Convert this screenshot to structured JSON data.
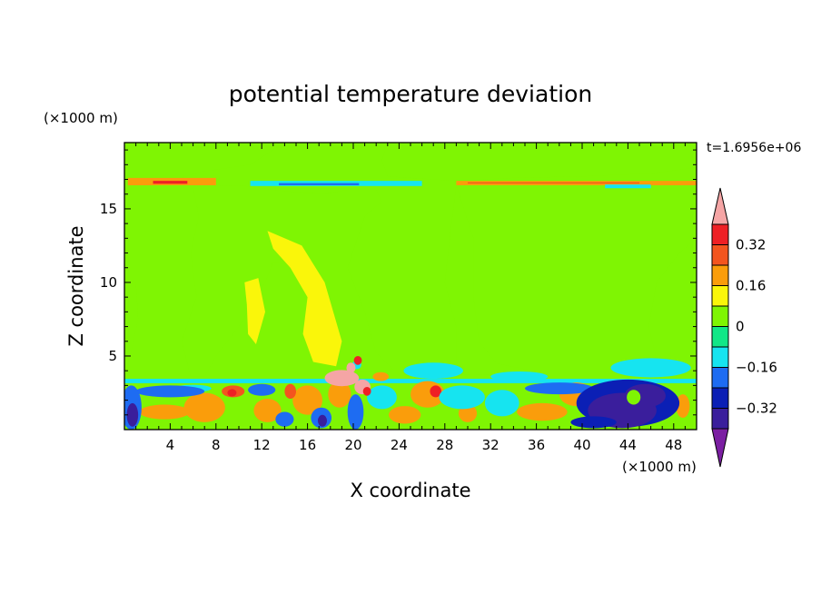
{
  "chart_data": {
    "type": "heatmap",
    "title": "potential temperature deviation",
    "xlabel": "X coordinate",
    "ylabel": "Z coordinate",
    "x_unit": "(×1000 m)",
    "y_unit": "(×1000 m)",
    "time_label": "t=1.6956e+06",
    "xlim": [
      0,
      50
    ],
    "ylim": [
      0,
      19.5
    ],
    "x_ticks": [
      4,
      8,
      12,
      16,
      20,
      24,
      28,
      32,
      36,
      40,
      44,
      48
    ],
    "y_ticks": [
      5,
      10,
      15
    ],
    "colorbar": {
      "levels": [
        -0.4,
        -0.32,
        -0.24,
        -0.16,
        -0.08,
        0,
        0.08,
        0.16,
        0.24,
        0.32,
        0.4
      ],
      "labels": [
        {
          "value": 0.32,
          "text": "0.32"
        },
        {
          "value": 0.16,
          "text": "0.16"
        },
        {
          "value": 0,
          "text": "0"
        },
        {
          "value": -0.16,
          "text": "−0.16"
        },
        {
          "value": -0.32,
          "text": "−0.32"
        }
      ],
      "colors": [
        "#7b1fa2",
        "#3a1e9c",
        "#0b1fb5",
        "#1e6cf2",
        "#16e4f0",
        "#11e787",
        "#7ff503",
        "#faf60a",
        "#fa9d0b",
        "#f3551f",
        "#ee2025",
        "#f5a5a5"
      ],
      "extend": "both"
    },
    "background_value": 0.04,
    "features": [
      {
        "kind": "region",
        "value": 0.0,
        "polygon": [
          [
            0,
            19.5
          ],
          [
            0,
            17.3
          ],
          [
            3,
            16.6
          ],
          [
            6.5,
            17.5
          ],
          [
            11,
            18
          ],
          [
            14,
            19.5
          ]
        ]
      },
      {
        "kind": "region",
        "value": 0.0,
        "polygon": [
          [
            23,
            19.5
          ],
          [
            22.5,
            18.3
          ],
          [
            23,
            17.2
          ],
          [
            29,
            16.9
          ],
          [
            34,
            17.1
          ],
          [
            40,
            17.2
          ],
          [
            46,
            17.4
          ],
          [
            50,
            17.8
          ],
          [
            50,
            19.5
          ]
        ]
      },
      {
        "kind": "region",
        "value": 0.0,
        "polygon": [
          [
            0,
            15
          ],
          [
            0,
            11.5
          ],
          [
            1,
            10
          ],
          [
            1.2,
            7.5
          ],
          [
            0.5,
            5
          ],
          [
            0,
            3.3
          ]
        ]
      },
      {
        "kind": "region",
        "value": 0.0,
        "polygon": [
          [
            6,
            16.5
          ],
          [
            10,
            16.6
          ],
          [
            14,
            16.2
          ],
          [
            17.5,
            16
          ],
          [
            19.5,
            16.3
          ],
          [
            22,
            16.3
          ],
          [
            22.5,
            15.5
          ],
          [
            21,
            14.5
          ],
          [
            19.5,
            11
          ],
          [
            21,
            8
          ],
          [
            22,
            5.2
          ],
          [
            23.5,
            4.1
          ],
          [
            17.5,
            3.7
          ],
          [
            15.5,
            6
          ],
          [
            16.5,
            9
          ],
          [
            15,
            11
          ],
          [
            13,
            11.4
          ],
          [
            12.3,
            10
          ],
          [
            10,
            7
          ],
          [
            8,
            5
          ],
          [
            7,
            3.6
          ],
          [
            5.8,
            3.6
          ],
          [
            5,
            6
          ],
          [
            6.3,
            9
          ],
          [
            5.8,
            12
          ],
          [
            6.5,
            14.5
          ]
        ]
      },
      {
        "kind": "region",
        "value": 0.0,
        "polygon": [
          [
            29,
            16.6
          ],
          [
            30.5,
            13
          ],
          [
            30.5,
            9
          ],
          [
            31,
            6
          ],
          [
            32.5,
            4.5
          ],
          [
            37,
            3.8
          ],
          [
            29,
            3.7
          ],
          [
            29,
            7
          ],
          [
            28,
            10
          ],
          [
            28.5,
            13.5
          ]
        ]
      },
      {
        "kind": "region",
        "value": 0.0,
        "polygon": [
          [
            50,
            13
          ],
          [
            48.5,
            12
          ],
          [
            46.5,
            10
          ],
          [
            45.8,
            7
          ],
          [
            46.5,
            4.8
          ],
          [
            50,
            4.1
          ]
        ]
      },
      {
        "kind": "region",
        "value": 0.08,
        "polygon": [
          [
            12.5,
            13.5
          ],
          [
            15.5,
            12.5
          ],
          [
            17.5,
            10
          ],
          [
            19,
            6
          ],
          [
            18.5,
            4.3
          ],
          [
            16.5,
            4.6
          ],
          [
            15.6,
            6.5
          ],
          [
            16,
            9
          ],
          [
            14.5,
            11
          ],
          [
            13,
            12.3
          ]
        ]
      },
      {
        "kind": "region",
        "value": 0.08,
        "polygon": [
          [
            10.5,
            10
          ],
          [
            11.7,
            10.3
          ],
          [
            12.3,
            8
          ],
          [
            11.5,
            5.8
          ],
          [
            10.8,
            6.5
          ],
          [
            10.7,
            8.5
          ]
        ]
      },
      {
        "kind": "band",
        "value": 0.2,
        "x": [
          0.3,
          8
        ],
        "z": [
          16.6,
          17.1
        ]
      },
      {
        "kind": "band",
        "value": 0.32,
        "x": [
          2.5,
          5.5
        ],
        "z": [
          16.7,
          16.9
        ]
      },
      {
        "kind": "band",
        "value": -0.12,
        "x": [
          11,
          26
        ],
        "z": [
          16.55,
          16.9
        ]
      },
      {
        "kind": "band",
        "value": -0.24,
        "x": [
          13.5,
          20.5
        ],
        "z": [
          16.6,
          16.75
        ]
      },
      {
        "kind": "band",
        "value": 0.16,
        "x": [
          29,
          50
        ],
        "z": [
          16.6,
          16.9
        ]
      },
      {
        "kind": "band",
        "value": 0.24,
        "x": [
          30,
          45
        ],
        "z": [
          16.72,
          16.8
        ]
      },
      {
        "kind": "band",
        "value": -0.12,
        "x": [
          42,
          46
        ],
        "z": [
          16.4,
          16.65
        ]
      },
      {
        "kind": "blob",
        "value": -0.12,
        "cx": 27,
        "cz": 4.0,
        "rx": 2.6,
        "rz": 0.55
      },
      {
        "kind": "blob",
        "value": -0.12,
        "cx": 46,
        "cz": 4.2,
        "rx": 3.5,
        "rz": 0.65
      },
      {
        "kind": "blob",
        "value": -0.12,
        "cx": 34.5,
        "cz": 3.6,
        "rx": 2.5,
        "rz": 0.35
      },
      {
        "kind": "blob",
        "value": -0.12,
        "cx": 20.3,
        "cz": 4.4,
        "rx": 0.4,
        "rz": 0.3
      },
      {
        "kind": "layer",
        "value": -0.12,
        "z": [
          3.15,
          3.45
        ]
      },
      {
        "kind": "layer",
        "value": 0.0,
        "z": [
          0,
          3.15
        ]
      },
      {
        "kind": "blob",
        "value": 0.16,
        "cx": 3.5,
        "cz": 1.2,
        "rx": 2.2,
        "rz": 0.5
      },
      {
        "kind": "blob",
        "value": 0.2,
        "cx": 7,
        "cz": 1.5,
        "rx": 1.8,
        "rz": 1.0
      },
      {
        "kind": "blob",
        "value": 0.24,
        "cx": 9.5,
        "cz": 2.6,
        "rx": 1.0,
        "rz": 0.4
      },
      {
        "kind": "blob",
        "value": 0.32,
        "cx": 9.4,
        "cz": 2.5,
        "rx": 0.4,
        "rz": 0.25
      },
      {
        "kind": "blob",
        "value": 0.16,
        "cx": 12.5,
        "cz": 1.3,
        "rx": 1.2,
        "rz": 0.8
      },
      {
        "kind": "blob",
        "value": 0.2,
        "cx": 16,
        "cz": 2.0,
        "rx": 1.3,
        "rz": 1.0
      },
      {
        "kind": "blob",
        "value": 0.24,
        "cx": 14.5,
        "cz": 2.6,
        "rx": 0.5,
        "rz": 0.5
      },
      {
        "kind": "blob",
        "value": 0.16,
        "cx": 18.8,
        "cz": 2.4,
        "rx": 1.0,
        "rz": 0.9
      },
      {
        "kind": "blob",
        "value": 0.2,
        "cx": 26.5,
        "cz": 2.4,
        "rx": 1.5,
        "rz": 0.9
      },
      {
        "kind": "blob",
        "value": 0.32,
        "cx": 27.2,
        "cz": 2.6,
        "rx": 0.5,
        "rz": 0.4
      },
      {
        "kind": "blob",
        "value": 0.16,
        "cx": 24.5,
        "cz": 1.0,
        "rx": 1.4,
        "rz": 0.6
      },
      {
        "kind": "blob",
        "value": 0.16,
        "cx": 30,
        "cz": 1.1,
        "rx": 0.8,
        "rz": 0.6
      },
      {
        "kind": "blob",
        "value": 0.16,
        "cx": 36.5,
        "cz": 1.2,
        "rx": 2.2,
        "rz": 0.6
      },
      {
        "kind": "blob",
        "value": 0.16,
        "cx": 39.5,
        "cz": 2.4,
        "rx": 1.5,
        "rz": 0.8
      },
      {
        "kind": "blob",
        "value": 0.16,
        "cx": 48.8,
        "cz": 1.6,
        "rx": 0.6,
        "rz": 0.8
      },
      {
        "kind": "blob",
        "value": -0.12,
        "cx": 6,
        "cz": 2.8,
        "rx": 1.6,
        "rz": 0.25
      },
      {
        "kind": "blob",
        "value": -0.12,
        "cx": 29.5,
        "cz": 2.2,
        "rx": 2.0,
        "rz": 0.8
      },
      {
        "kind": "blob",
        "value": -0.12,
        "cx": 33,
        "cz": 1.8,
        "rx": 1.5,
        "rz": 0.9
      },
      {
        "kind": "blob",
        "value": -0.12,
        "cx": 22.5,
        "cz": 2.2,
        "rx": 1.3,
        "rz": 0.8
      },
      {
        "kind": "blob",
        "value": -0.2,
        "cx": 0.6,
        "cz": 1.5,
        "rx": 0.9,
        "rz": 1.5
      },
      {
        "kind": "blob",
        "value": -0.36,
        "cx": 0.7,
        "cz": 1.0,
        "rx": 0.5,
        "rz": 0.8
      },
      {
        "kind": "blob",
        "value": -0.24,
        "cx": 4,
        "cz": 2.6,
        "rx": 3.0,
        "rz": 0.4
      },
      {
        "kind": "blob",
        "value": -0.2,
        "cx": 12,
        "cz": 2.7,
        "rx": 1.2,
        "rz": 0.4
      },
      {
        "kind": "blob",
        "value": -0.2,
        "cx": 17.2,
        "cz": 0.8,
        "rx": 0.9,
        "rz": 0.7
      },
      {
        "kind": "blob",
        "value": -0.36,
        "cx": 17.3,
        "cz": 0.6,
        "rx": 0.4,
        "rz": 0.4
      },
      {
        "kind": "blob",
        "value": -0.2,
        "cx": 20.2,
        "cz": 1.2,
        "rx": 0.7,
        "rz": 1.2
      },
      {
        "kind": "blob",
        "value": -0.2,
        "cx": 14,
        "cz": 0.7,
        "rx": 0.8,
        "rz": 0.5
      },
      {
        "kind": "blob",
        "value": -0.2,
        "cx": 38,
        "cz": 2.8,
        "rx": 3.0,
        "rz": 0.4
      },
      {
        "kind": "blob",
        "value": -0.28,
        "cx": 44,
        "cz": 1.8,
        "rx": 4.5,
        "rz": 1.6
      },
      {
        "kind": "blob",
        "value": -0.4,
        "cx": 43.5,
        "cz": 1.3,
        "rx": 3.0,
        "rz": 1.2
      },
      {
        "kind": "blob",
        "value": -0.4,
        "cx": 45.5,
        "cz": 2.3,
        "rx": 1.8,
        "rz": 0.8
      },
      {
        "kind": "blob",
        "value": 0.0,
        "cx": 44.5,
        "cz": 2.2,
        "rx": 0.6,
        "rz": 0.5
      },
      {
        "kind": "blob",
        "value": -0.28,
        "cx": 41,
        "cz": 0.5,
        "rx": 2.0,
        "rz": 0.4
      },
      {
        "kind": "blob",
        "value": 0.44,
        "cx": 19,
        "cz": 3.5,
        "rx": 1.5,
        "rz": 0.55
      },
      {
        "kind": "blob",
        "value": 0.44,
        "cx": 20.8,
        "cz": 2.9,
        "rx": 0.7,
        "rz": 0.5
      },
      {
        "kind": "blob",
        "value": 0.44,
        "cx": 19.8,
        "cz": 4.2,
        "rx": 0.4,
        "rz": 0.35
      },
      {
        "kind": "blob",
        "value": 0.36,
        "cx": 21.2,
        "cz": 2.6,
        "rx": 0.35,
        "rz": 0.3
      },
      {
        "kind": "blob",
        "value": 0.36,
        "cx": 20.4,
        "cz": 4.7,
        "rx": 0.35,
        "rz": 0.3
      },
      {
        "kind": "blob",
        "value": 0.16,
        "cx": 22.4,
        "cz": 3.6,
        "rx": 0.7,
        "rz": 0.3
      }
    ]
  }
}
